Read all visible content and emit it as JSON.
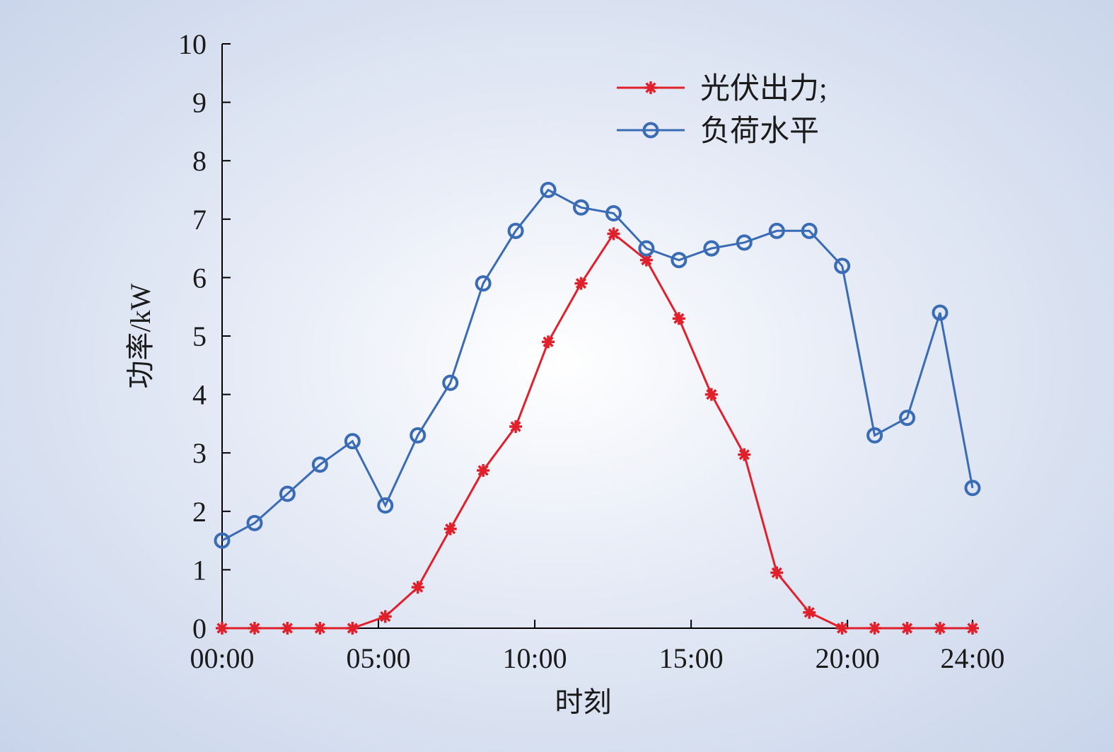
{
  "chart_data": {
    "type": "line",
    "xlabel": "时刻",
    "ylabel": "功率/kW",
    "ylim": [
      0,
      10
    ],
    "y_ticks": [
      "0",
      "1",
      "2",
      "3",
      "4",
      "5",
      "6",
      "7",
      "8",
      "9",
      "10"
    ],
    "x_range_hours": [
      0,
      24
    ],
    "x_ticks": [
      "00:00",
      "05:00",
      "10:00",
      "15:00",
      "20:00",
      "24:00"
    ],
    "legend_position": "top-right",
    "grid": false,
    "series": [
      {
        "name": "光伏出力;",
        "color": "#e0202a",
        "marker": "asterisk",
        "x": [
          0,
          1.04,
          2.09,
          3.13,
          4.17,
          5.22,
          6.26,
          7.3,
          8.35,
          9.39,
          10.43,
          11.48,
          12.52,
          13.57,
          14.61,
          15.65,
          16.7,
          17.74,
          18.78,
          19.83,
          20.87,
          21.91,
          22.96,
          24
        ],
        "values": [
          0,
          0,
          0,
          0,
          0,
          0.2,
          0.7,
          1.7,
          2.7,
          3.45,
          4.9,
          5.9,
          6.75,
          6.3,
          5.3,
          4.0,
          2.97,
          0.95,
          0.27,
          0,
          0,
          0,
          0,
          0
        ]
      },
      {
        "name": "负荷水平",
        "color": "#3a6bb5",
        "marker": "circle",
        "x": [
          0,
          1.04,
          2.09,
          3.13,
          4.17,
          5.22,
          6.26,
          7.3,
          8.35,
          9.39,
          10.43,
          11.48,
          12.52,
          13.57,
          14.61,
          15.65,
          16.7,
          17.74,
          18.78,
          19.83,
          20.87,
          21.91,
          22.96,
          24
        ],
        "values": [
          1.5,
          1.8,
          2.3,
          2.8,
          3.2,
          2.1,
          3.3,
          4.2,
          5.9,
          6.8,
          7.5,
          7.2,
          7.1,
          6.5,
          6.3,
          6.5,
          6.6,
          6.8,
          6.8,
          6.2,
          3.3,
          3.6,
          5.4,
          2.4
        ]
      }
    ]
  }
}
